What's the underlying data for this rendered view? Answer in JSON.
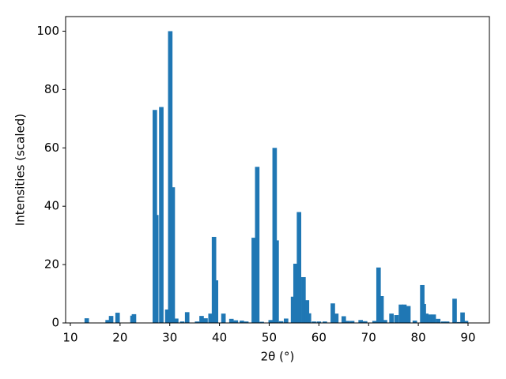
{
  "chart_data": {
    "type": "bar",
    "xlabel": "2θ (°)",
    "ylabel": "Intensities (scaled)",
    "x": [
      13.3,
      17.5,
      18.2,
      19.5,
      22.5,
      22.8,
      27.0,
      27.3,
      28.3,
      29.5,
      30.1,
      30.6,
      31.3,
      32.5,
      33.5,
      35.5,
      36.4,
      37.2,
      38.2,
      38.9,
      39.3,
      40.8,
      42.4,
      43.3,
      44.5,
      45.4,
      46.9,
      47.6,
      48.5,
      50.3,
      51.1,
      51.5,
      52.4,
      53.4,
      54.8,
      55.3,
      56.0,
      56.9,
      57.6,
      58.0,
      59.0,
      60.0,
      61.2,
      62.8,
      63.5,
      65.0,
      65.8,
      66.7,
      68.4,
      69.3,
      71.2,
      72.0,
      72.6,
      73.3,
      74.6,
      75.6,
      76.5,
      77.2,
      78.0,
      79.3,
      80.8,
      81.1,
      81.6,
      82.3,
      83.1,
      84.0,
      85.0,
      85.8,
      87.3,
      88.2,
      88.9,
      89.6
    ],
    "values": [
      1.6,
      1.0,
      2.4,
      3.5,
      2.5,
      3.0,
      73,
      37,
      74,
      4.6,
      100,
      46.5,
      1.5,
      0.5,
      3.7,
      0.5,
      2.4,
      1.6,
      3.2,
      29.5,
      14.6,
      3.2,
      1.4,
      0.9,
      0.8,
      0.5,
      29.2,
      53.5,
      0.4,
      1.0,
      60,
      28.3,
      0.6,
      1.5,
      9.0,
      20.3,
      38,
      15.7,
      7.8,
      3.3,
      0.5,
      0.5,
      0.5,
      6.7,
      3.2,
      2.3,
      0.7,
      0.7,
      1.0,
      0.6,
      0.7,
      19,
      9.2,
      1.0,
      3.2,
      2.7,
      6.3,
      6.3,
      5.8,
      0.8,
      13,
      6.5,
      3.2,
      2.9,
      2.9,
      1.4,
      0.5,
      0.5,
      8.3,
      0.3,
      3.6,
      0.7
    ],
    "color": "#1f77b4",
    "xlim": [
      9.05,
      94.3
    ],
    "xticks": [
      10,
      20,
      30,
      40,
      50,
      60,
      70,
      80,
      90
    ],
    "ylim": [
      0,
      105
    ],
    "yticks": [
      0,
      20,
      40,
      60,
      80,
      100
    ]
  }
}
